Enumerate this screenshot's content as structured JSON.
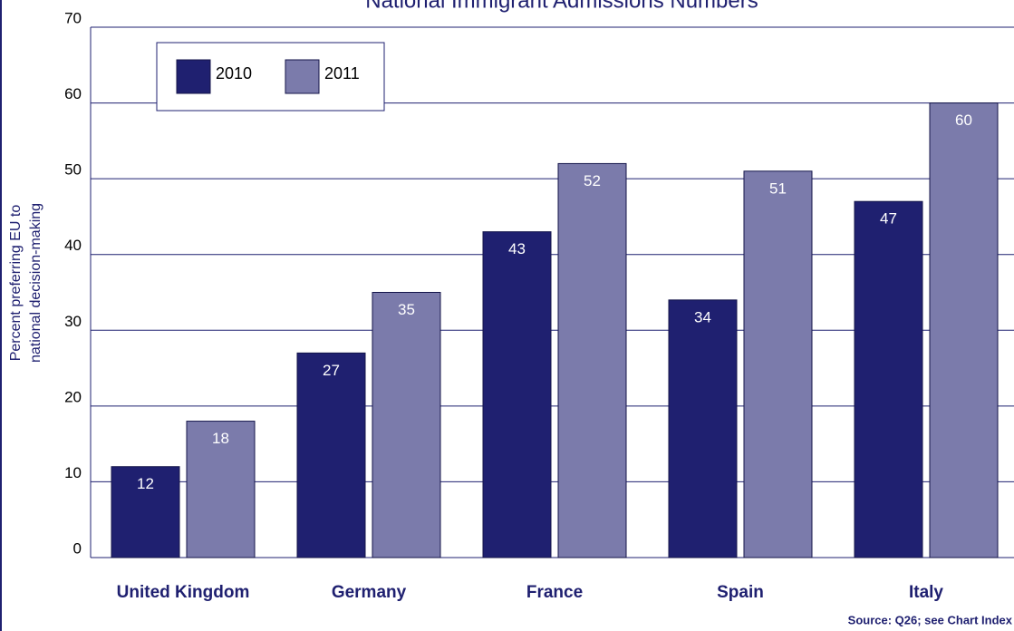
{
  "chart_data": {
    "type": "bar",
    "title": "National Immigrant Admissions Numbers",
    "ylabel": [
      "Percent preferring EU to",
      "national decision-making"
    ],
    "source": "Source: Q26; see Chart Index",
    "categories": [
      "United Kingdom",
      "Germany",
      "France",
      "Spain",
      "Italy"
    ],
    "series": [
      {
        "name": "2010",
        "color": "#1f2070",
        "values": [
          12,
          27,
          43,
          34,
          47
        ]
      },
      {
        "name": "2011",
        "color": "#7b7bab",
        "values": [
          18,
          35,
          52,
          51,
          60
        ]
      }
    ],
    "ylim": [
      0,
      70
    ],
    "yticks": [
      0,
      10,
      20,
      30,
      40,
      50,
      60,
      70
    ],
    "grid": true,
    "legend": "top-left"
  }
}
